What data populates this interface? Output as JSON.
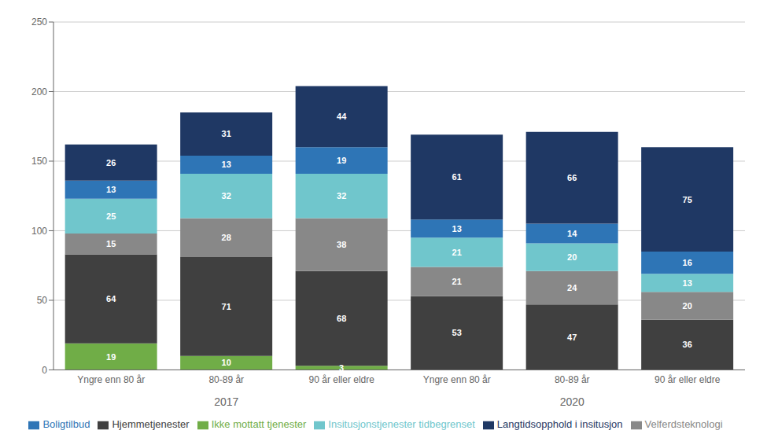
{
  "chart_data": {
    "type": "bar",
    "stacked": true,
    "data_labels": true,
    "grid": true,
    "legend": "bottom",
    "categories": [
      "Yngre enn 80 år",
      "80-89 år",
      "90 år eller eldre",
      "Yngre enn 80 år",
      "80-89 år",
      "90 år eller eldre"
    ],
    "annotations": [
      "2017",
      "2020"
    ],
    "ylim": [
      0,
      250
    ],
    "yticks": [
      0,
      50,
      100,
      150,
      200,
      250
    ],
    "series": [
      {
        "name": "Ikke mottatt tjenester",
        "color": "#70AD47",
        "values": [
          19,
          10,
          3,
          0,
          0,
          0
        ]
      },
      {
        "name": "Hjemmetjenester",
        "color": "#404040",
        "values": [
          64,
          71,
          68,
          53,
          47,
          36
        ]
      },
      {
        "name": "Velferdsteknologi",
        "color": "#888888",
        "values": [
          15,
          28,
          38,
          21,
          24,
          20
        ]
      },
      {
        "name": "Insitusjonstjenester tidbegrenset",
        "color": "#70C6CC",
        "values": [
          25,
          32,
          32,
          21,
          20,
          13
        ]
      },
      {
        "name": "Boligtilbud",
        "color": "#2E75B6",
        "values": [
          13,
          13,
          19,
          13,
          14,
          16
        ]
      },
      {
        "name": "Langtidsopphold i insitusjon",
        "color": "#1F3864",
        "values": [
          26,
          31,
          44,
          61,
          66,
          75
        ]
      }
    ]
  }
}
